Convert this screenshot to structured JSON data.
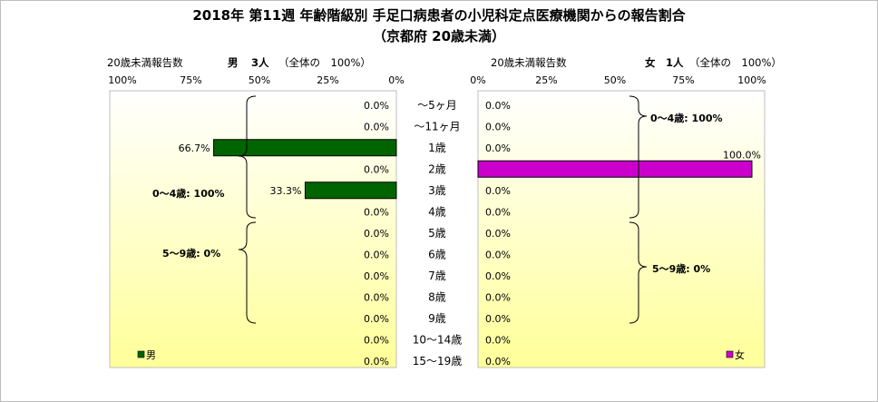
{
  "title_line1": "2018年 第11週 年齢階級別 手足口病患者の小児科定点医療機関からの報告割合",
  "title_line2": "（京都府 20歳未満）",
  "left_header": {
    "count_label": "20歳未満報告数",
    "sex": "男",
    "count": "3人",
    "total": "（全体の　100%）"
  },
  "right_header": {
    "count_label": "20歳未満報告数",
    "sex": "女",
    "count": "1人",
    "total": "（全体の　100%）"
  },
  "group_labels": {
    "male_0_4": "0～4歳: 100%",
    "male_5_9": "5～9歳: 0%",
    "female_0_4": "0～4歳: 100%",
    "female_5_9": "5～9歳: 0%"
  },
  "legend": {
    "male": "男",
    "female": "女"
  },
  "colors": {
    "male": "#006400",
    "female": "#cc00cc",
    "plot_bg_top": "#ffffff",
    "plot_bg_bottom": "#ffff99"
  },
  "chart_data": {
    "type": "bar",
    "orientation": "horizontal-pyramid",
    "categories": [
      "～5ヶ月",
      "～11ヶ月",
      "1歳",
      "2歳",
      "3歳",
      "4歳",
      "5歳",
      "6歳",
      "7歳",
      "8歳",
      "9歳",
      "10～14歳",
      "15～19歳"
    ],
    "xlim": [
      0,
      100
    ],
    "ticks": [
      "0%",
      "25%",
      "50%",
      "75%",
      "100%"
    ],
    "series": [
      {
        "name": "男",
        "labels": [
          "0.0%",
          "0.0%",
          "66.7%",
          "0.0%",
          "33.3%",
          "0.0%",
          "0.0%",
          "0.0%",
          "0.0%",
          "0.0%",
          "0.0%",
          "0.0%",
          "0.0%"
        ],
        "values": [
          0,
          0,
          66.7,
          0,
          33.3,
          0,
          0,
          0,
          0,
          0,
          0,
          0,
          0
        ]
      },
      {
        "name": "女",
        "labels": [
          "0.0%",
          "0.0%",
          "0.0%",
          "100.0%",
          "0.0%",
          "0.0%",
          "0.0%",
          "0.0%",
          "0.0%",
          "0.0%",
          "0.0%",
          "0.0%",
          "0.0%"
        ],
        "values": [
          0,
          0,
          0,
          100,
          0,
          0,
          0,
          0,
          0,
          0,
          0,
          0,
          0
        ]
      }
    ]
  }
}
